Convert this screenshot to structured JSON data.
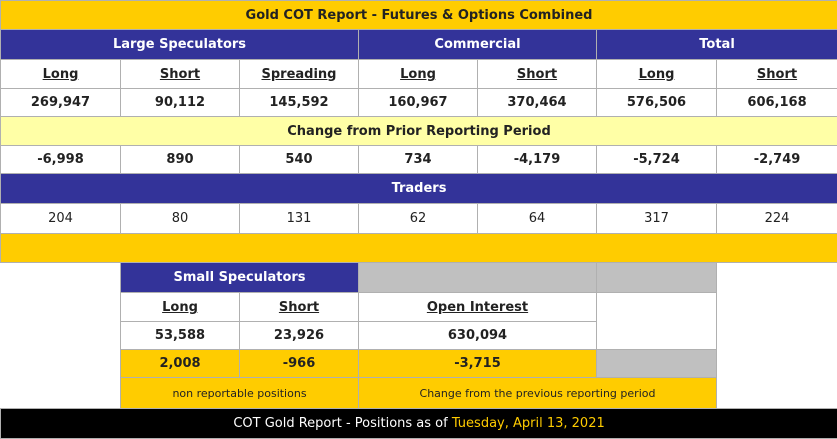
{
  "title": "Gold COT Report - Futures & Options Combined",
  "groups": {
    "large_speculators": "Large Speculators",
    "commercial": "Commercial",
    "total": "Total"
  },
  "headers": [
    "Long",
    "Short",
    "Spreading",
    "Long",
    "Short",
    "Long",
    "Short"
  ],
  "positions": [
    "269,947",
    "90,112",
    "145,592",
    "160,967",
    "370,464",
    "576,506",
    "606,168"
  ],
  "change_label": "Change from Prior Reporting Period",
  "changes": [
    "-6,998",
    "890",
    "540",
    "734",
    "-4,179",
    "-5,724",
    "-2,749"
  ],
  "traders_label": "Traders",
  "traders": [
    "204",
    "80",
    "131",
    "62",
    "64",
    "317",
    "224"
  ],
  "small": {
    "title": "Small Speculators",
    "long_label": "Long",
    "short_label": "Short",
    "oi_label": "Open Interest",
    "long": "53,588",
    "short": "23,926",
    "oi": "630,094",
    "long_change": "2,008",
    "short_change": "-966",
    "oi_change": "-3,715",
    "note_left": "non reportable positions",
    "note_right": "Change from the previous reporting period"
  },
  "footer": {
    "prefix": "COT Gold Report - Positions as of",
    "date": "Tuesday, April 13, 2021"
  },
  "colors": {
    "gold": "#ffcc00",
    "blue": "#333399",
    "cream": "#ffffa6",
    "grey": "#c0c0c0",
    "footer": "#000000"
  }
}
